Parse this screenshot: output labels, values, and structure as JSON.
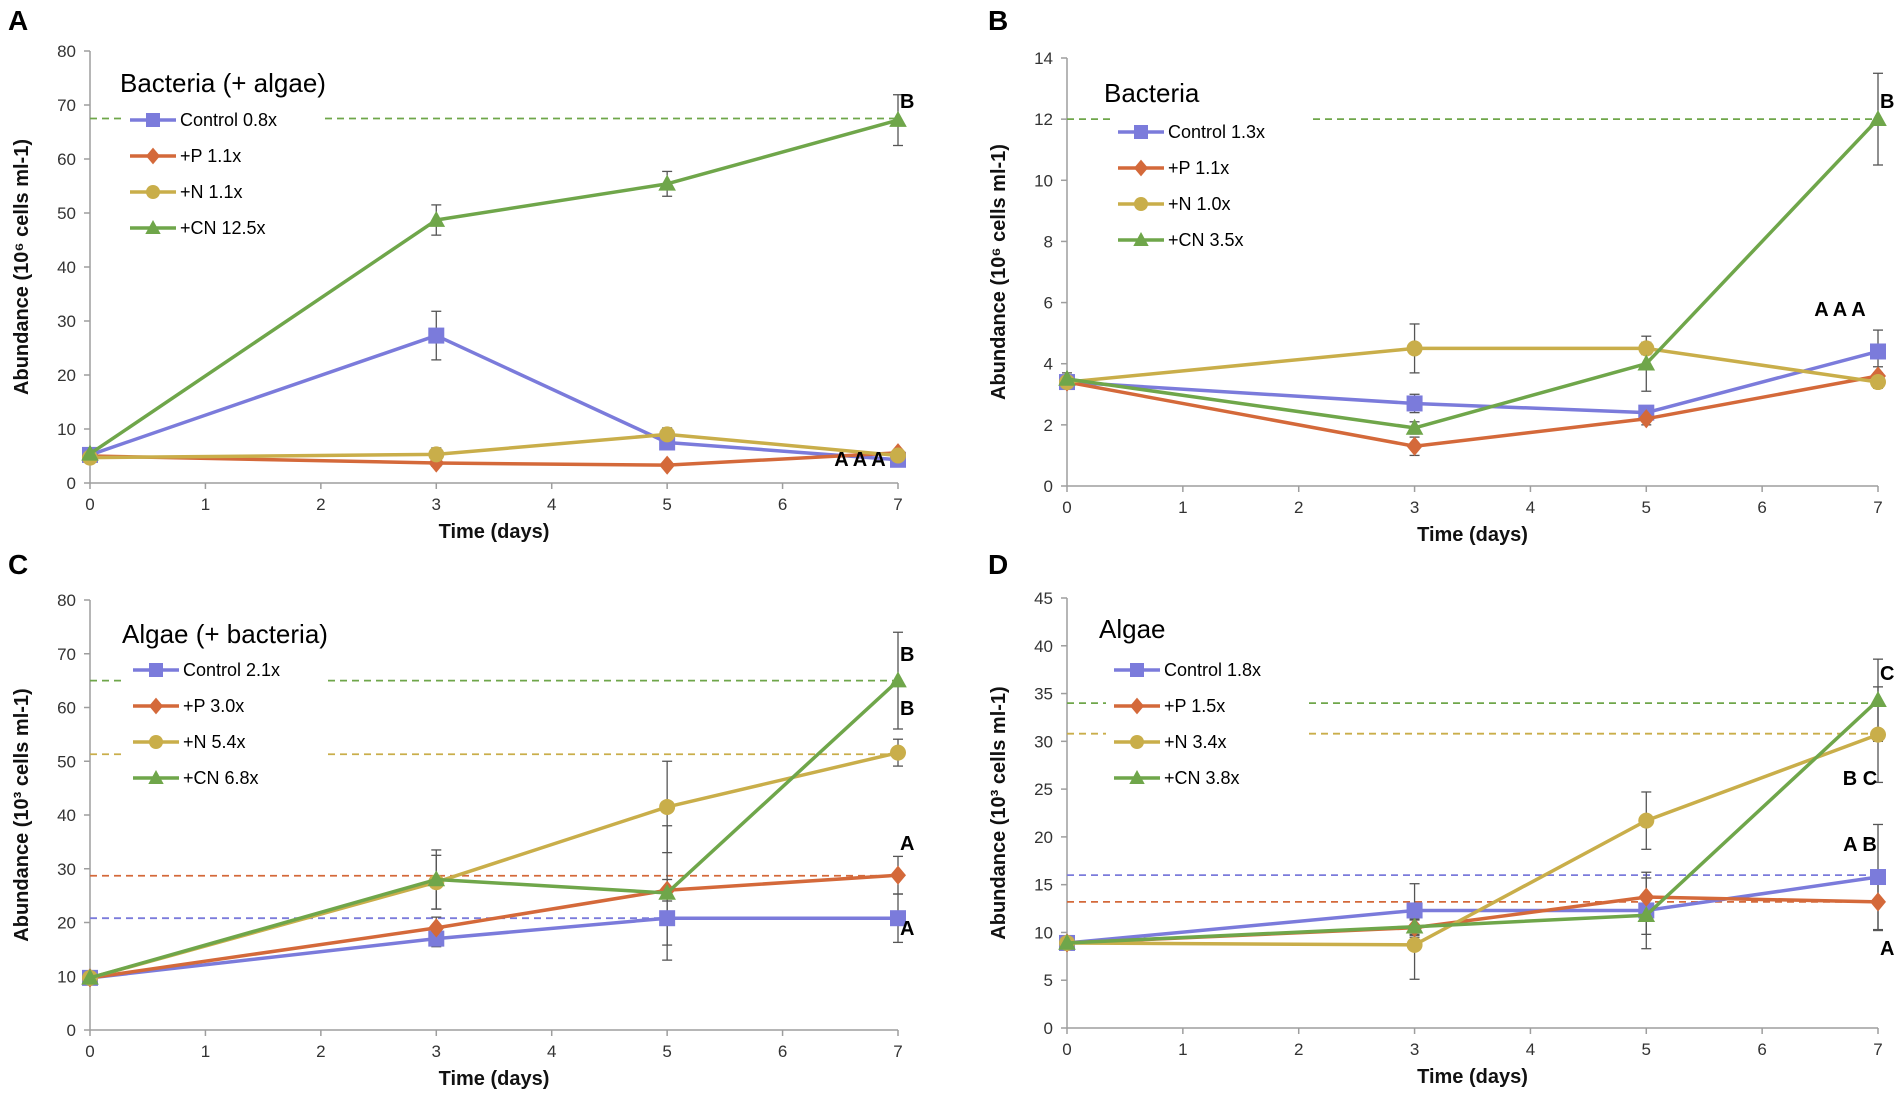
{
  "colors": {
    "Control": "#7B7BDB",
    "+P": "#D4693A",
    "+N": "#C9AE4A",
    "+CN": "#6FA64A",
    "axis": "#9e9e9e"
  },
  "chart_data": [
    {
      "panel": "A",
      "type": "line",
      "title": "Bacteria (+ algae)",
      "xlabel": "Time (days)",
      "ylabel": "Abundance (10⁶ cells ml-1)",
      "x": [
        0,
        3,
        5,
        7
      ],
      "xlim": [
        0,
        7
      ],
      "ylim": [
        0,
        80
      ],
      "ytick_step": 10,
      "series": [
        {
          "name": "Control",
          "legend_label": "Control 0.8x",
          "marker": "square",
          "values": [
            5.2,
            27.3,
            7.5,
            4.3
          ],
          "errors": [
            0.4,
            4.5,
            1.0,
            0.6
          ]
        },
        {
          "name": "+P",
          "legend_label": "+P 1.1x",
          "marker": "diamond",
          "values": [
            5.0,
            3.7,
            3.3,
            5.6
          ],
          "errors": [
            0.4,
            0.6,
            0.4,
            0.6
          ]
        },
        {
          "name": "+N",
          "legend_label": "+N 1.1x",
          "marker": "circle",
          "values": [
            4.7,
            5.3,
            9.0,
            5.1
          ],
          "errors": [
            0.4,
            1.2,
            1.2,
            0.8
          ]
        },
        {
          "name": "+CN",
          "legend_label": "+CN 12.5x",
          "marker": "triangle",
          "values": [
            5.4,
            48.7,
            55.4,
            67.2
          ],
          "errors": [
            0.4,
            2.8,
            2.3,
            4.7
          ]
        }
      ],
      "reference_lines": [
        {
          "series": "+CN",
          "value": 67.5
        }
      ],
      "annotations": [
        {
          "text": "B",
          "x": 7,
          "y": 70.5
        },
        {
          "text": "A A A",
          "x": 7,
          "y": 10.5
        }
      ]
    },
    {
      "panel": "B",
      "type": "line",
      "title": "Bacteria",
      "xlabel": "Time (days)",
      "ylabel": "Abundance (10⁶ cells ml-1)",
      "x": [
        0,
        3,
        5,
        7
      ],
      "xlim": [
        0,
        7
      ],
      "ylim": [
        0,
        14
      ],
      "ytick_step": 2,
      "series": [
        {
          "name": "Control",
          "legend_label": "Control 1.3x",
          "marker": "square",
          "values": [
            3.4,
            2.7,
            2.4,
            4.4
          ],
          "errors": [
            0.2,
            0.3,
            0.2,
            0.7
          ]
        },
        {
          "name": "+P",
          "legend_label": "+P 1.1x",
          "marker": "diamond",
          "values": [
            3.4,
            1.3,
            2.2,
            3.6
          ],
          "errors": [
            0.2,
            0.3,
            0.2,
            0.3
          ]
        },
        {
          "name": "+N",
          "legend_label": "+N 1.0x",
          "marker": "circle",
          "values": [
            3.4,
            4.5,
            4.5,
            3.4
          ],
          "errors": [
            0.2,
            0.8,
            0.2,
            0.2
          ]
        },
        {
          "name": "+CN",
          "legend_label": "+CN 3.5x",
          "marker": "triangle",
          "values": [
            3.5,
            1.9,
            4.0,
            12.0
          ],
          "errors": [
            0.2,
            0.2,
            0.9,
            1.5
          ]
        }
      ],
      "reference_lines": [
        {
          "series": "+CN",
          "value": 12.0
        }
      ],
      "annotations": [
        {
          "text": "B",
          "x": 7,
          "y": 13.0
        },
        {
          "text": "A A A",
          "x": 7,
          "y": 5.2
        }
      ]
    },
    {
      "panel": "C",
      "type": "line",
      "title": "Algae (+ bacteria)",
      "xlabel": "Time (days)",
      "ylabel": "Abundance (10³ cells ml-1)",
      "x": [
        0,
        3,
        5,
        7
      ],
      "xlim": [
        0,
        7
      ],
      "ylim": [
        0,
        80
      ],
      "ytick_step": 10,
      "series": [
        {
          "name": "Control",
          "legend_label": "Control 2.1x",
          "marker": "square",
          "values": [
            9.7,
            17.0,
            20.8,
            20.8
          ],
          "errors": [
            0.4,
            1.5,
            5.0,
            4.5
          ]
        },
        {
          "name": "+P",
          "legend_label": "+P 3.0x",
          "marker": "diamond",
          "values": [
            9.7,
            19.0,
            26.0,
            28.8
          ],
          "errors": [
            0.4,
            2.0,
            2.0,
            3.5
          ]
        },
        {
          "name": "+N",
          "legend_label": "+N 5.4x",
          "marker": "circle",
          "values": [
            9.7,
            27.5,
            41.5,
            51.6
          ],
          "errors": [
            0.4,
            5.0,
            8.5,
            2.5
          ]
        },
        {
          "name": "+CN",
          "legend_label": "+CN 6.8x",
          "marker": "triangle",
          "values": [
            9.7,
            28.0,
            25.5,
            65.0
          ],
          "errors": [
            0.4,
            5.5,
            12.5,
            9.0
          ]
        }
      ],
      "reference_lines": [
        {
          "series": "+CN",
          "value": 65.0
        },
        {
          "series": "+N",
          "value": 51.3
        },
        {
          "series": "+P",
          "value": 28.7
        },
        {
          "series": "Control",
          "value": 20.8
        }
      ],
      "annotations": [
        {
          "text": "B",
          "x": 7,
          "y": 68.3
        },
        {
          "text": "B",
          "x": 7,
          "y": 54.8
        },
        {
          "text": "A",
          "x": 7,
          "y": 32.8
        },
        {
          "text": "A",
          "x": 7,
          "y": 23.8
        }
      ]
    },
    {
      "panel": "D",
      "type": "line",
      "title": "Algae",
      "xlabel": "Time (days)",
      "ylabel": "Abundance (10³ cells ml-1)",
      "x": [
        0,
        3,
        5,
        7
      ],
      "xlim": [
        0,
        7
      ],
      "ylim": [
        0,
        45
      ],
      "ytick_step": 5,
      "series": [
        {
          "name": "Control",
          "legend_label": "Control 1.8x",
          "marker": "square",
          "values": [
            8.9,
            12.3,
            12.3,
            15.8
          ],
          "errors": [
            0.3,
            2.8,
            4.0,
            5.5
          ]
        },
        {
          "name": "+P",
          "legend_label": "+P 1.5x",
          "marker": "diamond",
          "values": [
            8.9,
            10.5,
            13.7,
            13.2
          ],
          "errors": [
            0.3,
            0.8,
            2.0,
            3.0
          ]
        },
        {
          "name": "+N",
          "legend_label": "+N 3.4x",
          "marker": "circle",
          "values": [
            8.9,
            8.7,
            21.7,
            30.7
          ],
          "errors": [
            0.3,
            3.6,
            3.0,
            5.0
          ]
        },
        {
          "name": "+CN",
          "legend_label": "+CN 3.8x",
          "marker": "triangle",
          "values": [
            8.9,
            10.6,
            11.8,
            34.3
          ],
          "errors": [
            0.3,
            0.8,
            2.0,
            4.3
          ]
        }
      ],
      "reference_lines": [
        {
          "series": "+CN",
          "value": 34.0
        },
        {
          "series": "+N",
          "value": 30.8
        },
        {
          "series": "Control",
          "value": 16.0
        },
        {
          "series": "+P",
          "value": 13.2
        }
      ],
      "annotations": [
        {
          "text": "C",
          "x": 7,
          "y": 36.5
        },
        {
          "text": "B C",
          "x": 7,
          "y": 27.8
        },
        {
          "text": "A B",
          "x": 7,
          "y": 18.3
        },
        {
          "text": "A",
          "x": 7,
          "y": 9.2
        }
      ]
    }
  ]
}
